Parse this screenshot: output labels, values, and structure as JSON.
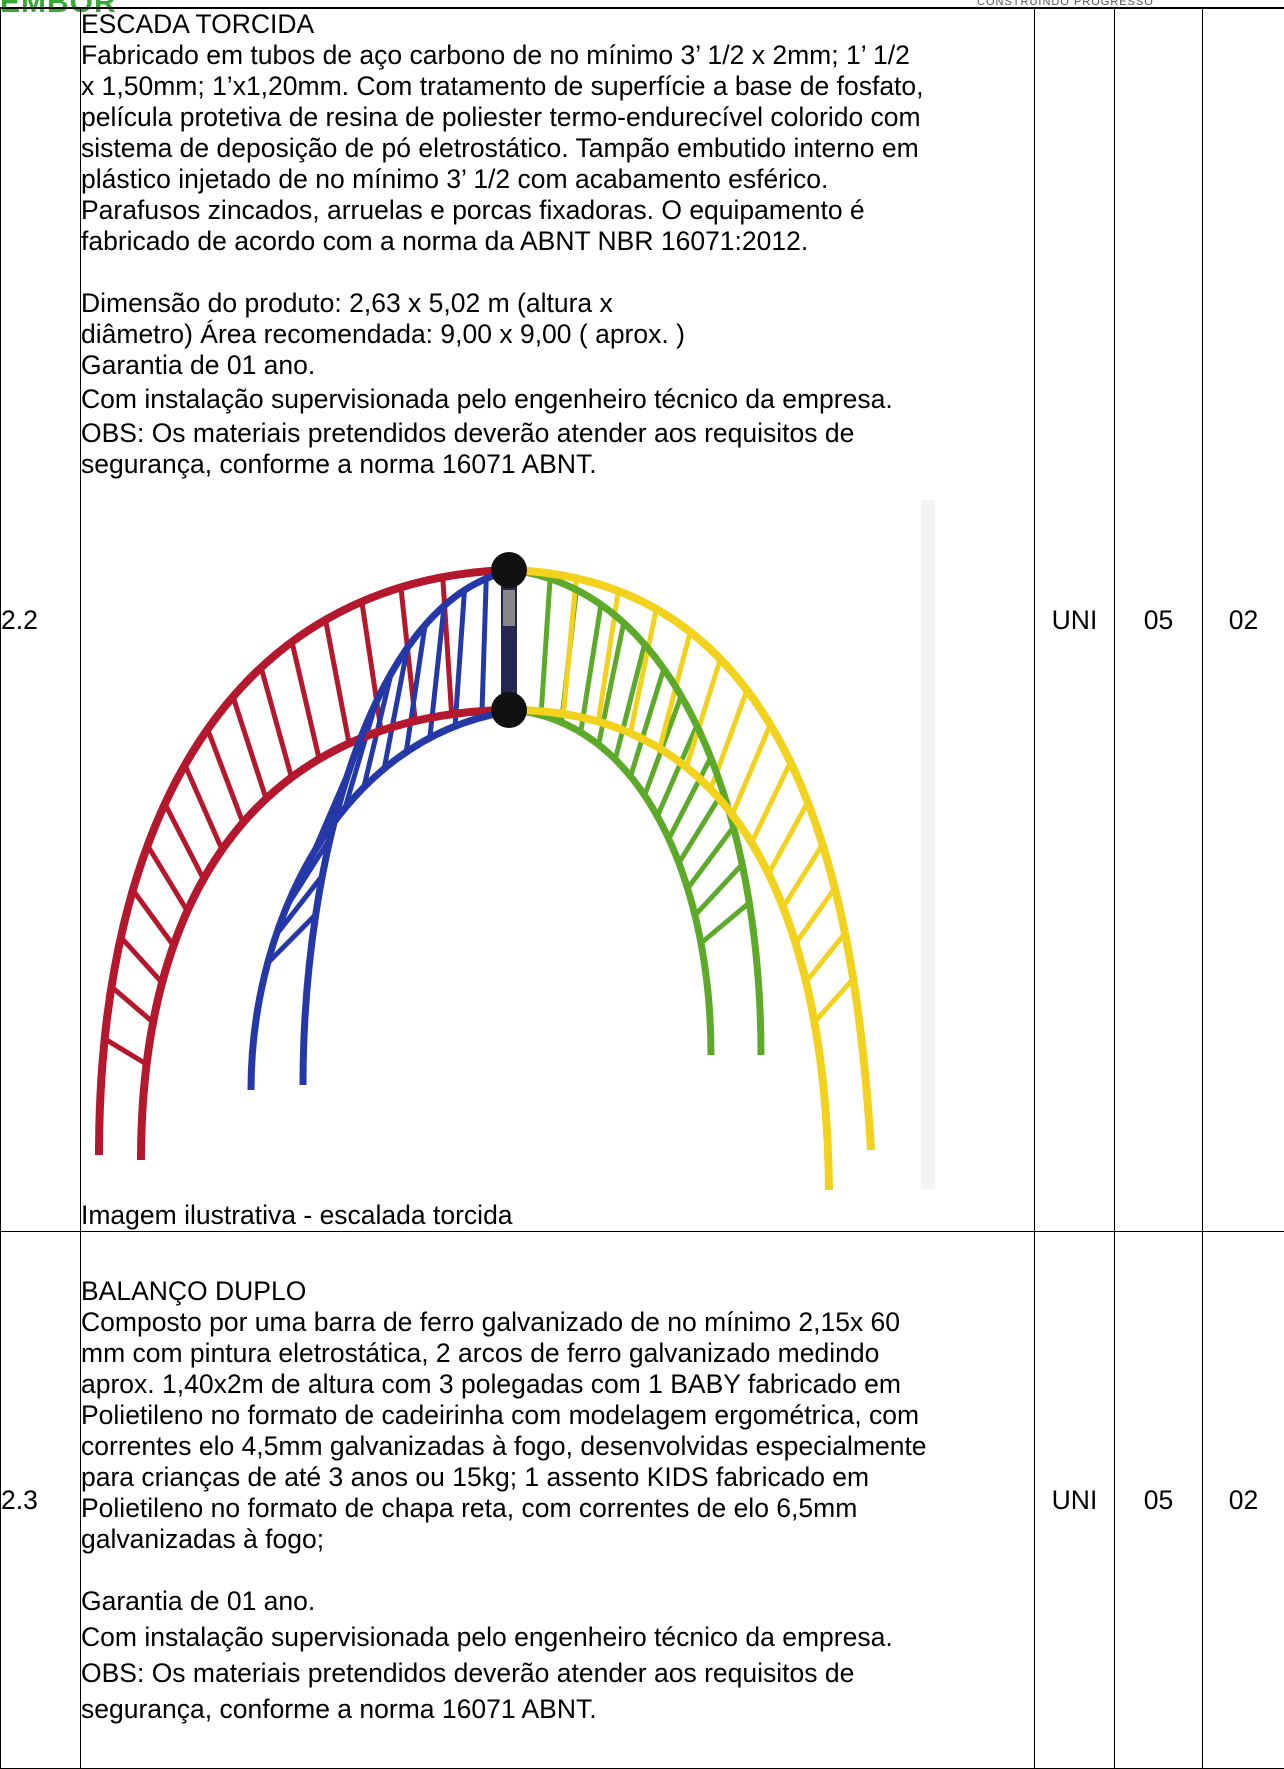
{
  "header": {
    "logo_text": "EMBOR",
    "tagline": "CONSTRUINDO PROGRESSO"
  },
  "rows": [
    {
      "item": "2.2",
      "title": "ESCADA TORCIDA",
      "desc_lines": [
        "Fabricado em tubos de aço carbono de no mínimo 3’ 1/2 x 2mm; 1’ 1/2",
        "x 1,50mm; 1’x1,20mm. Com tratamento de superfície a base de fosfato,",
        "película protetiva de resina de poliester termo-endurecível colorido com",
        "sistema de deposição de pó eletrostático. Tampão embutido interno em",
        "plástico injetado de no mínimo 3’ 1/2 com acabamento esférico.",
        "Parafusos zincados, arruelas e porcas fixadoras. O equipamento é",
        "fabricado de acordo com a norma da ABNT NBR 16071:2012."
      ],
      "dim_lines": [
        "Dimensão do produto: 2,63 x 5,02 m (altura x",
        "diâmetro) Área recomendada: 9,00 x 9,00 ( aprox. )",
        "Garantia de 01 ano.",
        "Com instalação supervisionada pelo engenheiro técnico da empresa.",
        "OBS: Os materiais pretendidos deverão atender aos requisitos de",
        "segurança, conforme a norma 16071 ABNT."
      ],
      "caption": "Imagem ilustrativa - escalada torcida",
      "unit": "UNI",
      "qty": "05",
      "qty2": "02",
      "colors": {
        "red": "#b5172d",
        "blue": "#2438a8",
        "green": "#5daa2a",
        "yellow": "#f2d21c"
      }
    },
    {
      "item": "2.3",
      "title": "BALANÇO DUPLO",
      "desc_lines": [
        "Composto por uma barra de ferro galvanizado de no mínimo 2,15x 60",
        "mm com pintura eletrostática, 2 arcos de ferro galvanizado medindo",
        "aprox. 1,40x2m de altura com 3 polegadas com 1 BABY fabricado em",
        "Polietileno no formato de cadeirinha com modelagem ergométrica, com",
        "correntes elo 4,5mm galvanizadas à fogo, desenvolvidas especialmente",
        "para crianças de até 3 anos ou 15kg; 1 assento KIDS fabricado em",
        "Polietileno no formato de chapa reta, com correntes de elo 6,5mm",
        "galvanizadas à fogo;"
      ],
      "dim_lines": [
        "Garantia de 01 ano.",
        "Com instalação supervisionada pelo engenheiro técnico da empresa.",
        "OBS: Os materiais pretendidos deverão atender aos requisitos de",
        "segurança, conforme a norma 16071 ABNT."
      ],
      "unit": "UNI",
      "qty": "05",
      "qty2": "02"
    }
  ]
}
